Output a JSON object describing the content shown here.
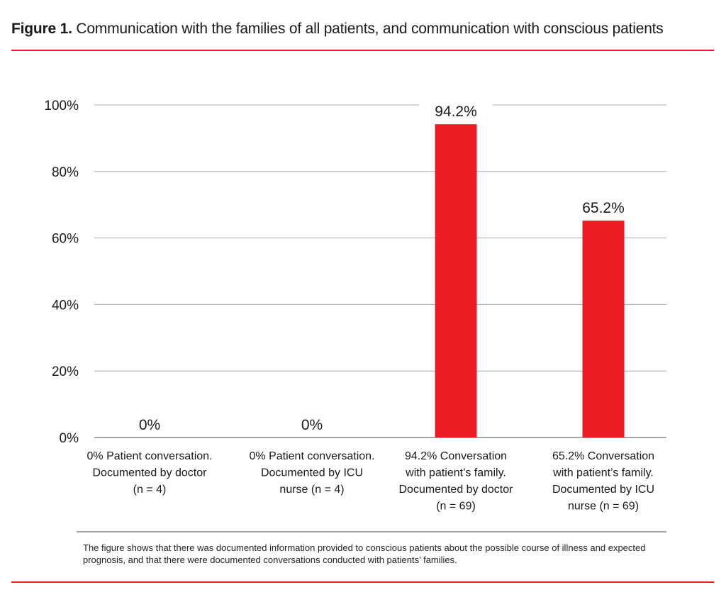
{
  "figure": {
    "label": "Figure 1.",
    "title": "Communication with the families of all patients, and communication with conscious patients",
    "note": "The figure shows that there was documented information provided to conscious patients about the possible course of illness and expected prognosis, and that there were documented conversations conducted with patients’ families.",
    "accent_color": "#ed1c24"
  },
  "chart_data": {
    "type": "bar",
    "title": "Communication with the families of all patients, and communication with conscious patients",
    "xlabel": "",
    "ylabel": "",
    "ylim": [
      0,
      100
    ],
    "yticks": [
      0,
      20,
      40,
      60,
      80,
      100
    ],
    "ytick_labels": [
      "0%",
      "20%",
      "40%",
      "60%",
      "80%",
      "100%"
    ],
    "grid": true,
    "bar_color": "#ed1c24",
    "categories": [
      [
        "0% Patient conversation.",
        "Documented by doctor",
        "(n = 4)"
      ],
      [
        "0% Patient conversation.",
        "Documented by ICU",
        "nurse (n = 4)"
      ],
      [
        "94.2% Conversation",
        "with patient’s family.",
        "Documented by doctor",
        "(n = 69)"
      ],
      [
        "65.2% Conversation",
        "with patient’s family.",
        "Documented by ICU",
        "nurse (n = 69)"
      ]
    ],
    "values": [
      0,
      0,
      94.2,
      65.2
    ],
    "data_labels": [
      "0%",
      "0%",
      "94.2%",
      "65.2%"
    ]
  }
}
